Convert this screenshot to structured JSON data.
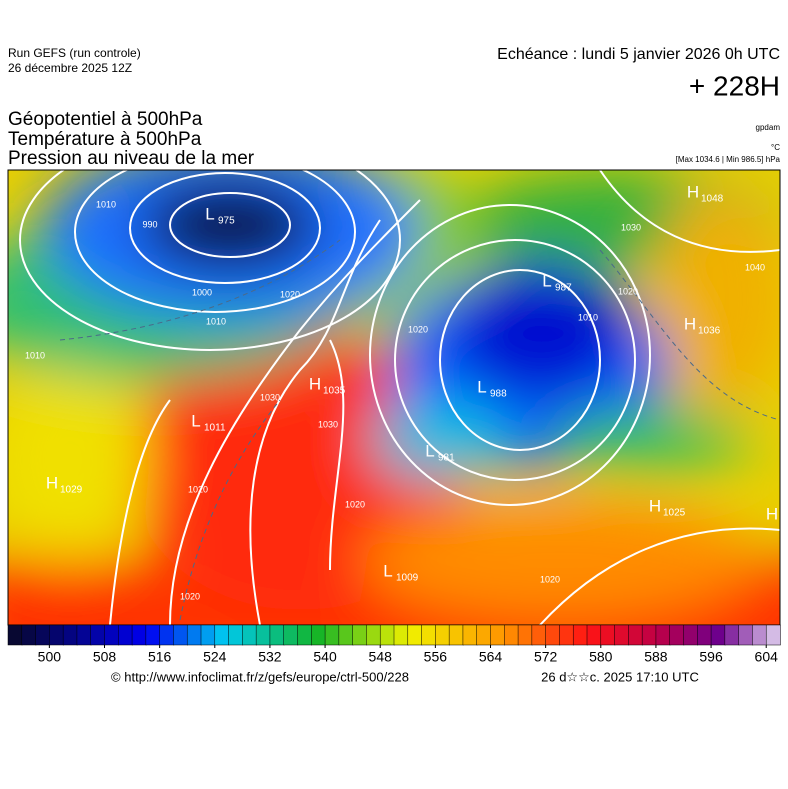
{
  "header": {
    "run": "Run GEFS (run controle)",
    "run_date": "26 décembre 2025 12Z",
    "valid": "Echéance : lundi 5 janvier 2026 0h UTC",
    "lead": "+ 228H",
    "titles": [
      "Géopotentiel à 500hPa",
      "Température à 500hPa",
      "Pression au niveau de la mer"
    ],
    "units": [
      "gpdam",
      "°C"
    ],
    "extremes": "[Max 1034.6 | Min 986.5] hPa"
  },
  "map": {
    "centers": [
      {
        "kind": "L",
        "value": 975
      },
      {
        "kind": "H",
        "value": 1048
      },
      {
        "kind": "L",
        "value": 987
      },
      {
        "kind": "H",
        "value": 1036
      },
      {
        "kind": "H",
        "value": 1035
      },
      {
        "kind": "L",
        "value": 988
      },
      {
        "kind": "L",
        "value": 1011
      },
      {
        "kind": "L",
        "value": 981
      },
      {
        "kind": "H",
        "value": 1029
      },
      {
        "kind": "H",
        "value": 1025
      },
      {
        "kind": "L",
        "value": 1009
      },
      {
        "kind": "H"
      }
    ],
    "isobar_labels": [
      1010,
      990,
      1000,
      1010,
      1010,
      1020,
      1030,
      1030,
      1020,
      1020,
      1040,
      1030,
      1020,
      1020,
      1010,
      1020,
      1020
    ]
  },
  "colorbar": {
    "range": [
      494,
      606
    ],
    "ticks": [
      500,
      508,
      516,
      524,
      532,
      540,
      548,
      556,
      564,
      572,
      580,
      588,
      596,
      604
    ]
  },
  "footer": {
    "source": "© http://www.infoclimat.fr/z/gefs/europe/ctrl-500/228",
    "generated": "26 d☆☆c. 2025 17:10 UTC"
  }
}
